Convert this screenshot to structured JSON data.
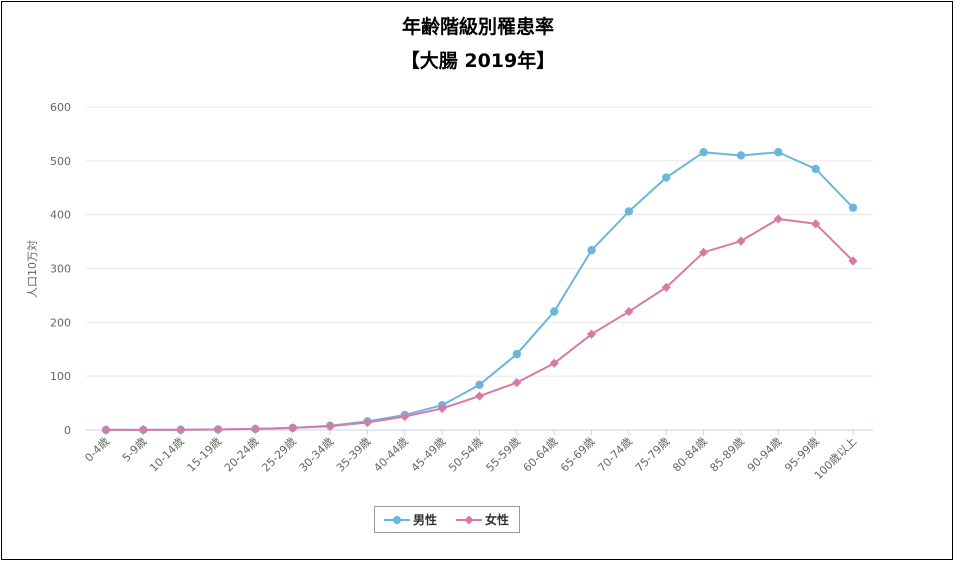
{
  "chart_data": {
    "type": "line",
    "title": "年齢階級別罹患率",
    "subtitle": "【大腸 2019年】",
    "xlabel": "",
    "ylabel": "人口10万対",
    "ylim": [
      0,
      600
    ],
    "yticks": [
      "0",
      "100",
      "200",
      "300",
      "400",
      "500",
      "600"
    ],
    "grid": true,
    "legend_position": "bottom-center",
    "categories": [
      "0-4歳",
      "5-9歳",
      "10-14歳",
      "15-19歳",
      "20-24歳",
      "25-29歳",
      "30-34歳",
      "35-39歳",
      "40-44歳",
      "45-49歳",
      "50-54歳",
      "55-59歳",
      "60-64歳",
      "65-69歳",
      "70-74歳",
      "75-79歳",
      "80-84歳",
      "85-89歳",
      "90-94歳",
      "95-99歳",
      "100歳以上"
    ],
    "series": [
      {
        "name": "男性",
        "color": "#6bb7dc",
        "marker": "circle",
        "values": [
          0.2,
          0.3,
          0.5,
          1.0,
          2.0,
          4.0,
          8.0,
          16.0,
          28.0,
          46.0,
          84.0,
          141.0,
          220.0,
          334.0,
          406.0,
          469.0,
          516.0,
          510.0,
          516.0,
          485.0,
          413.0
        ]
      },
      {
        "name": "女性",
        "color": "#d97aa6",
        "marker": "diamond",
        "values": [
          0.2,
          0.3,
          0.5,
          1.0,
          2.0,
          4.0,
          7.0,
          14.0,
          25.0,
          40.0,
          63.0,
          88.0,
          124.0,
          178.0,
          220.0,
          265.0,
          330.0,
          351.0,
          392.0,
          383.0,
          314.0
        ]
      }
    ]
  }
}
